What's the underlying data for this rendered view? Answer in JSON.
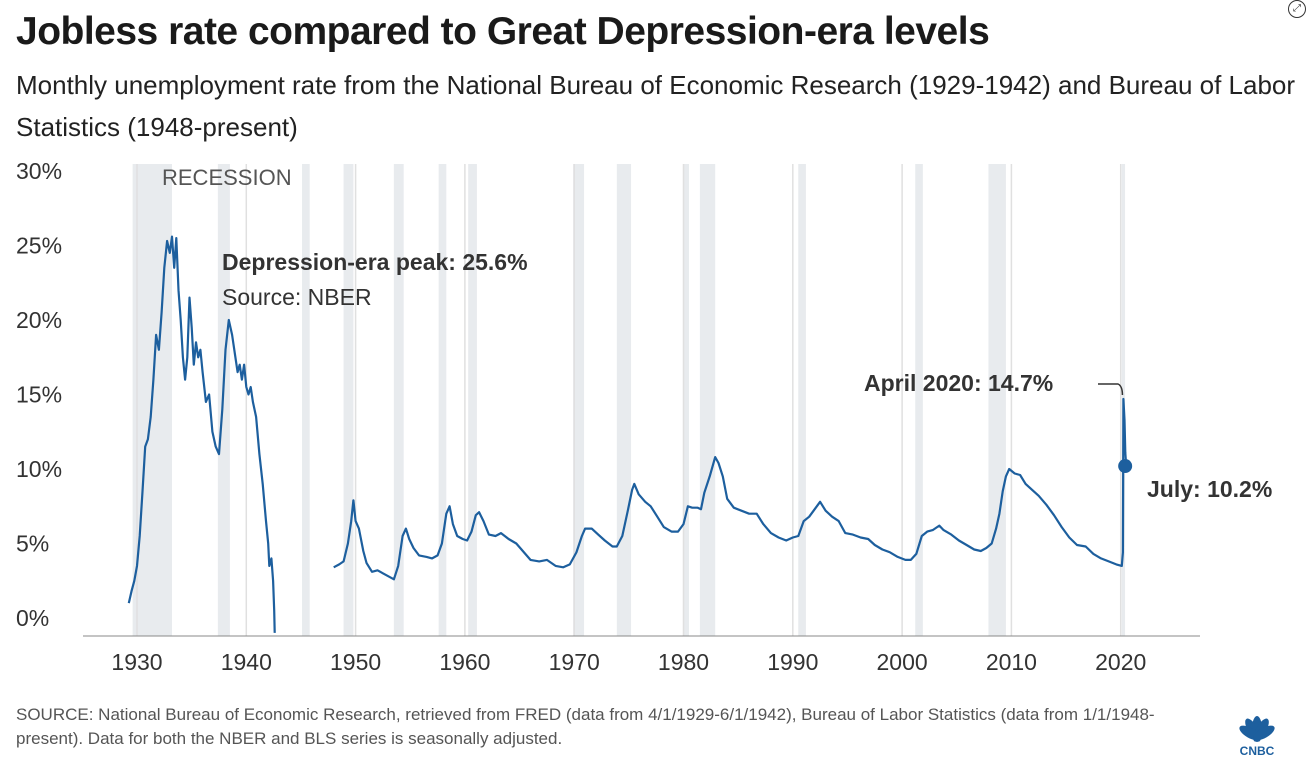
{
  "header": {
    "title": "Jobless rate compared to Great Depression-era levels",
    "subtitle": "Monthly unemployment rate from the National Bureau of Economic Research (1929-1942) and Bureau of Labor Statistics (1948-present)"
  },
  "footer": {
    "source": "SOURCE: National Bureau of Economic Research, retrieved from FRED (data from 4/1/1929-6/1/1942), Bureau of Labor Statistics (data from 1/1/1948-present). Data for both the NBER and BLS series is seasonally adjusted.",
    "logo_text": "CNBC"
  },
  "icons": {
    "expand": "expand-icon",
    "logo": "cnbc-peacock-logo"
  },
  "colors": {
    "line": "#1d5f9e",
    "recession": "#e8ebee",
    "grid": "#e0e0e0",
    "text": "#222222"
  },
  "chart_data": {
    "type": "line",
    "title": "Jobless rate compared to Great Depression-era levels",
    "xlim": [
      1924,
      2031
    ],
    "ylim": [
      -1,
      31
    ],
    "y_ticks": [
      0,
      5,
      10,
      15,
      20,
      25,
      30
    ],
    "y_tick_labels": [
      "0%",
      "5%",
      "10%",
      "15%",
      "20%",
      "25%",
      "30%"
    ],
    "x_ticks": [
      1930,
      1940,
      1950,
      1960,
      1970,
      1980,
      1990,
      2000,
      2010,
      2020
    ],
    "x_tick_labels": [
      "1930",
      "1940",
      "1950",
      "1960",
      "1970",
      "1980",
      "1990",
      "2000",
      "2010",
      "2020"
    ],
    "grid": "vertical at x ticks",
    "recession_label": "RECESSION",
    "recessions": [
      [
        1929.6,
        1933.2
      ],
      [
        1937.4,
        1938.5
      ],
      [
        1945.1,
        1945.8
      ],
      [
        1948.9,
        1949.8
      ],
      [
        1953.5,
        1954.4
      ],
      [
        1957.6,
        1958.3
      ],
      [
        1960.3,
        1961.1
      ],
      [
        1969.9,
        1970.9
      ],
      [
        1973.9,
        1975.2
      ],
      [
        1980.0,
        1980.5
      ],
      [
        1981.5,
        1982.9
      ],
      [
        1990.5,
        1991.2
      ],
      [
        2001.2,
        2001.9
      ],
      [
        2007.9,
        2009.5
      ],
      [
        2020.1,
        2020.4
      ]
    ],
    "series": [
      {
        "segment": "NBER",
        "points": [
          [
            1929.25,
            1.0
          ],
          [
            1929.5,
            1.8
          ],
          [
            1929.75,
            2.5
          ],
          [
            1930.0,
            3.5
          ],
          [
            1930.25,
            5.5
          ],
          [
            1930.5,
            8.5
          ],
          [
            1930.75,
            11.5
          ],
          [
            1931.0,
            12.0
          ],
          [
            1931.25,
            13.5
          ],
          [
            1931.5,
            16.0
          ],
          [
            1931.75,
            19.0
          ],
          [
            1932.0,
            18.0
          ],
          [
            1932.25,
            20.5
          ],
          [
            1932.5,
            23.5
          ],
          [
            1932.75,
            25.3
          ],
          [
            1933.0,
            24.5
          ],
          [
            1933.2,
            25.6
          ],
          [
            1933.4,
            23.5
          ],
          [
            1933.6,
            25.5
          ],
          [
            1933.8,
            22.0
          ],
          [
            1934.0,
            20.0
          ],
          [
            1934.2,
            17.5
          ],
          [
            1934.4,
            16.0
          ],
          [
            1934.6,
            17.5
          ],
          [
            1934.8,
            21.5
          ],
          [
            1935.0,
            19.5
          ],
          [
            1935.2,
            17.0
          ],
          [
            1935.4,
            18.5
          ],
          [
            1935.6,
            17.5
          ],
          [
            1935.8,
            18.0
          ],
          [
            1936.0,
            16.5
          ],
          [
            1936.3,
            14.5
          ],
          [
            1936.6,
            15.0
          ],
          [
            1936.9,
            12.5
          ],
          [
            1937.2,
            11.5
          ],
          [
            1937.5,
            11.0
          ],
          [
            1937.8,
            14.0
          ],
          [
            1938.1,
            18.0
          ],
          [
            1938.4,
            20.0
          ],
          [
            1938.7,
            19.0
          ],
          [
            1939.0,
            17.5
          ],
          [
            1939.2,
            16.5
          ],
          [
            1939.4,
            17.0
          ],
          [
            1939.6,
            16.0
          ],
          [
            1939.8,
            17.0
          ],
          [
            1940.0,
            15.5
          ],
          [
            1940.2,
            15.0
          ],
          [
            1940.4,
            15.5
          ],
          [
            1940.6,
            14.5
          ],
          [
            1940.9,
            13.5
          ],
          [
            1941.2,
            11.0
          ],
          [
            1941.5,
            9.0
          ],
          [
            1941.8,
            6.5
          ],
          [
            1942.0,
            5.0
          ],
          [
            1942.1,
            3.5
          ],
          [
            1942.3,
            4.0
          ],
          [
            1942.45,
            2.5
          ],
          [
            1942.55,
            0.5
          ],
          [
            1942.6,
            -1.0
          ]
        ]
      },
      {
        "segment": "BLS",
        "points": [
          [
            1948.0,
            3.4
          ],
          [
            1948.5,
            3.6
          ],
          [
            1948.9,
            3.8
          ],
          [
            1949.3,
            5.0
          ],
          [
            1949.6,
            6.5
          ],
          [
            1949.8,
            7.9
          ],
          [
            1950.0,
            6.5
          ],
          [
            1950.3,
            6.0
          ],
          [
            1950.7,
            4.5
          ],
          [
            1951.0,
            3.7
          ],
          [
            1951.5,
            3.1
          ],
          [
            1952.0,
            3.2
          ],
          [
            1952.5,
            3.0
          ],
          [
            1953.0,
            2.8
          ],
          [
            1953.5,
            2.6
          ],
          [
            1953.9,
            3.5
          ],
          [
            1954.3,
            5.5
          ],
          [
            1954.6,
            6.0
          ],
          [
            1954.9,
            5.3
          ],
          [
            1955.3,
            4.7
          ],
          [
            1955.8,
            4.2
          ],
          [
            1956.5,
            4.1
          ],
          [
            1957.0,
            4.0
          ],
          [
            1957.5,
            4.2
          ],
          [
            1957.9,
            5.0
          ],
          [
            1958.3,
            7.0
          ],
          [
            1958.6,
            7.5
          ],
          [
            1958.9,
            6.3
          ],
          [
            1959.3,
            5.5
          ],
          [
            1959.8,
            5.3
          ],
          [
            1960.2,
            5.2
          ],
          [
            1960.6,
            5.8
          ],
          [
            1961.0,
            6.9
          ],
          [
            1961.3,
            7.1
          ],
          [
            1961.7,
            6.5
          ],
          [
            1962.2,
            5.6
          ],
          [
            1962.8,
            5.5
          ],
          [
            1963.3,
            5.7
          ],
          [
            1964.0,
            5.3
          ],
          [
            1964.7,
            5.0
          ],
          [
            1965.3,
            4.5
          ],
          [
            1966.0,
            3.9
          ],
          [
            1966.8,
            3.8
          ],
          [
            1967.5,
            3.9
          ],
          [
            1968.3,
            3.5
          ],
          [
            1969.0,
            3.4
          ],
          [
            1969.6,
            3.6
          ],
          [
            1970.2,
            4.4
          ],
          [
            1970.7,
            5.5
          ],
          [
            1971.0,
            6.0
          ],
          [
            1971.6,
            6.0
          ],
          [
            1972.2,
            5.6
          ],
          [
            1972.8,
            5.2
          ],
          [
            1973.5,
            4.8
          ],
          [
            1973.9,
            4.8
          ],
          [
            1974.4,
            5.5
          ],
          [
            1974.9,
            7.2
          ],
          [
            1975.3,
            8.6
          ],
          [
            1975.5,
            9.0
          ],
          [
            1975.9,
            8.3
          ],
          [
            1976.5,
            7.8
          ],
          [
            1977.0,
            7.5
          ],
          [
            1977.6,
            6.8
          ],
          [
            1978.2,
            6.1
          ],
          [
            1978.9,
            5.8
          ],
          [
            1979.5,
            5.8
          ],
          [
            1980.0,
            6.3
          ],
          [
            1980.4,
            7.5
          ],
          [
            1980.8,
            7.4
          ],
          [
            1981.3,
            7.4
          ],
          [
            1981.6,
            7.3
          ],
          [
            1981.9,
            8.4
          ],
          [
            1982.4,
            9.5
          ],
          [
            1982.9,
            10.8
          ],
          [
            1983.2,
            10.4
          ],
          [
            1983.6,
            9.5
          ],
          [
            1984.0,
            8.0
          ],
          [
            1984.6,
            7.4
          ],
          [
            1985.3,
            7.2
          ],
          [
            1986.0,
            7.0
          ],
          [
            1986.7,
            7.0
          ],
          [
            1987.3,
            6.3
          ],
          [
            1988.0,
            5.7
          ],
          [
            1988.7,
            5.4
          ],
          [
            1989.4,
            5.2
          ],
          [
            1990.0,
            5.4
          ],
          [
            1990.5,
            5.5
          ],
          [
            1991.0,
            6.5
          ],
          [
            1991.5,
            6.8
          ],
          [
            1992.0,
            7.3
          ],
          [
            1992.5,
            7.8
          ],
          [
            1993.0,
            7.2
          ],
          [
            1993.6,
            6.8
          ],
          [
            1994.2,
            6.5
          ],
          [
            1994.8,
            5.7
          ],
          [
            1995.5,
            5.6
          ],
          [
            1996.2,
            5.4
          ],
          [
            1996.9,
            5.3
          ],
          [
            1997.5,
            4.9
          ],
          [
            1998.2,
            4.6
          ],
          [
            1998.9,
            4.4
          ],
          [
            1999.6,
            4.1
          ],
          [
            2000.3,
            3.9
          ],
          [
            2000.8,
            3.9
          ],
          [
            2001.3,
            4.3
          ],
          [
            2001.8,
            5.5
          ],
          [
            2002.3,
            5.8
          ],
          [
            2002.8,
            5.9
          ],
          [
            2003.4,
            6.2
          ],
          [
            2003.8,
            5.9
          ],
          [
            2004.5,
            5.6
          ],
          [
            2005.2,
            5.2
          ],
          [
            2005.9,
            4.9
          ],
          [
            2006.6,
            4.6
          ],
          [
            2007.2,
            4.5
          ],
          [
            2007.7,
            4.7
          ],
          [
            2008.2,
            5.0
          ],
          [
            2008.6,
            6.0
          ],
          [
            2008.9,
            7.0
          ],
          [
            2009.2,
            8.5
          ],
          [
            2009.5,
            9.5
          ],
          [
            2009.8,
            10.0
          ],
          [
            2010.3,
            9.7
          ],
          [
            2010.8,
            9.6
          ],
          [
            2011.3,
            9.0
          ],
          [
            2011.9,
            8.6
          ],
          [
            2012.5,
            8.2
          ],
          [
            2013.2,
            7.6
          ],
          [
            2013.9,
            6.9
          ],
          [
            2014.6,
            6.1
          ],
          [
            2015.3,
            5.4
          ],
          [
            2016.0,
            4.9
          ],
          [
            2016.8,
            4.8
          ],
          [
            2017.5,
            4.3
          ],
          [
            2018.2,
            4.0
          ],
          [
            2018.9,
            3.8
          ],
          [
            2019.6,
            3.6
          ],
          [
            2020.1,
            3.5
          ],
          [
            2020.2,
            4.4
          ],
          [
            2020.25,
            14.7
          ],
          [
            2020.35,
            13.3
          ],
          [
            2020.42,
            11.1
          ],
          [
            2020.5,
            10.2
          ]
        ]
      }
    ],
    "annotations": [
      {
        "text": "Depression-era peak: 25.6%",
        "bold": true
      },
      {
        "text": "Source: NBER",
        "bold": false
      },
      {
        "text": "April 2020: 14.7%",
        "bold": true,
        "x": 2020.25,
        "y": 14.7
      },
      {
        "text": "July: 10.2%",
        "bold": true,
        "x": 2020.5,
        "y": 10.2
      }
    ]
  }
}
